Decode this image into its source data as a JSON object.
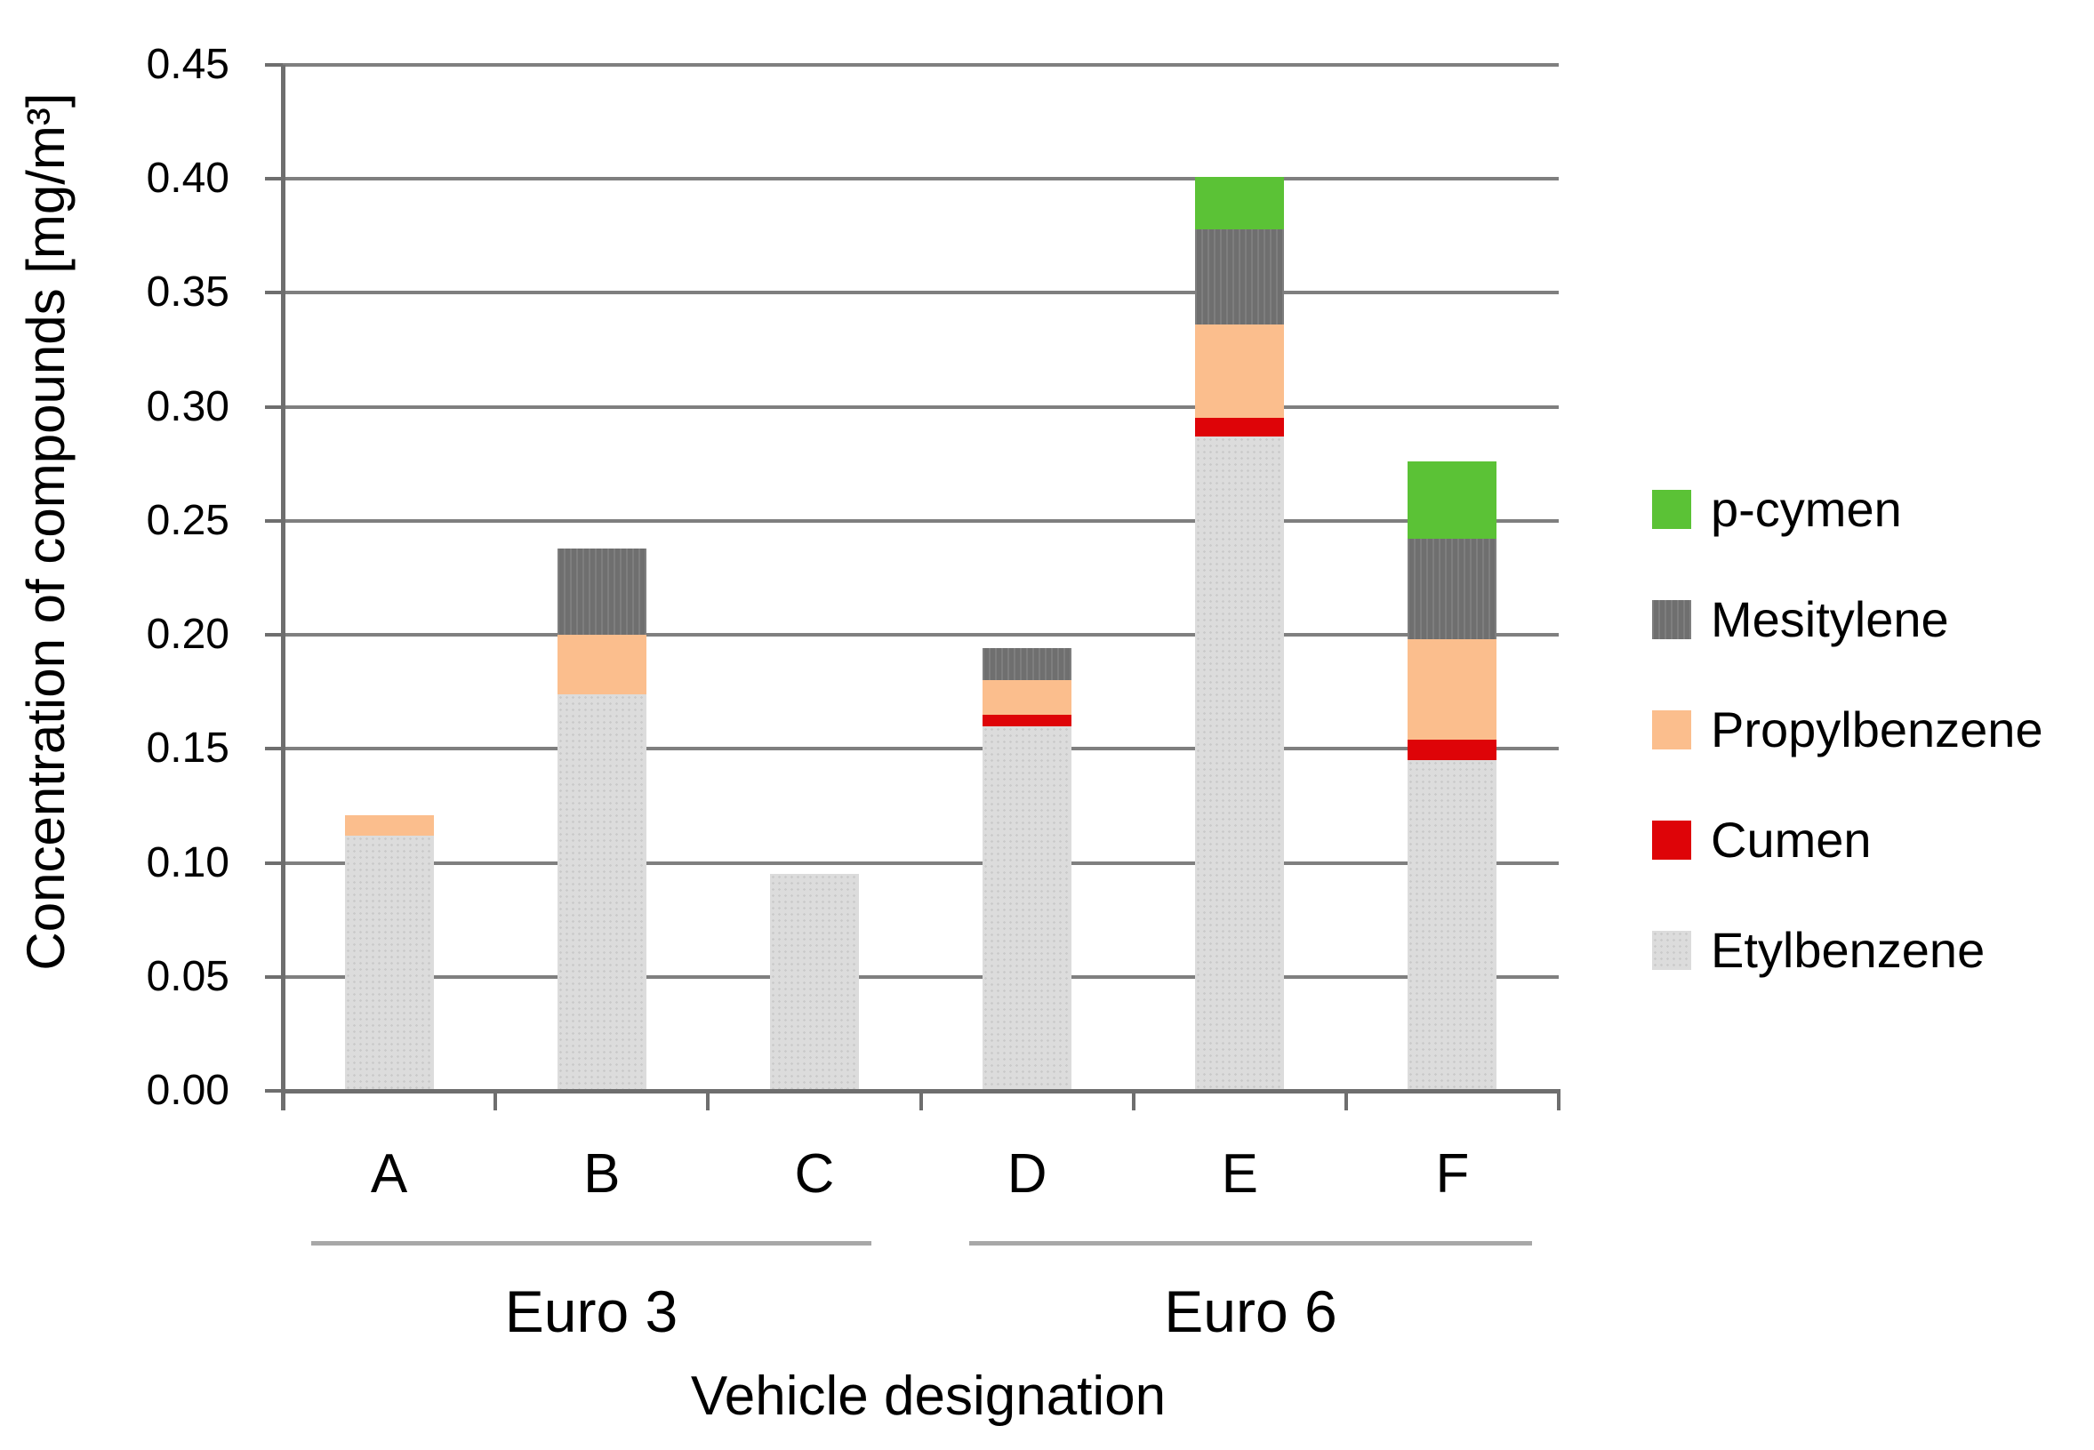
{
  "chart_data": {
    "type": "bar",
    "stacked": true,
    "title": "",
    "xlabel": "Vehicle designation",
    "ylabel": "Concentration of compounds [mg/m³]",
    "ylim": [
      0,
      0.45
    ],
    "ytick_step": 0.05,
    "ytick_labels": [
      "0.00",
      "0.05",
      "0.10",
      "0.15",
      "0.20",
      "0.25",
      "0.30",
      "0.35",
      "0.40",
      "0.45"
    ],
    "grid": "horizontal",
    "legend_position": "right",
    "categories": [
      "A",
      "B",
      "C",
      "D",
      "E",
      "F"
    ],
    "groups": [
      {
        "label": "Euro 3",
        "categories": [
          "A",
          "B",
          "C"
        ]
      },
      {
        "label": "Euro 6",
        "categories": [
          "D",
          "E",
          "F"
        ]
      }
    ],
    "series": [
      {
        "name": "Etylbenzene",
        "color": "#dcdcdc",
        "pattern": "dots",
        "values": [
          0.112,
          0.174,
          0.095,
          0.16,
          0.287,
          0.145
        ]
      },
      {
        "name": "Cumen",
        "color": "#de0408",
        "pattern": "solid",
        "values": [
          0,
          0,
          0,
          0.005,
          0.008,
          0.009
        ]
      },
      {
        "name": "Propylbenzene",
        "color": "#fbbe8d",
        "pattern": "solid",
        "values": [
          0.009,
          0.026,
          0,
          0.015,
          0.041,
          0.044
        ]
      },
      {
        "name": "Mesitylene",
        "color": "#6f6f6f",
        "pattern": "vlines",
        "values": [
          0,
          0.038,
          0,
          0.014,
          0.042,
          0.044
        ]
      },
      {
        "name": "p-cymen",
        "color": "#5bc236",
        "pattern": "solid",
        "values": [
          0,
          0,
          0,
          0,
          0.023,
          0.034
        ]
      }
    ],
    "legend_order_top_to_bottom": [
      "p-cymen",
      "Mesitylene",
      "Propylbenzene",
      "Cumen",
      "Etylbenzene"
    ]
  }
}
